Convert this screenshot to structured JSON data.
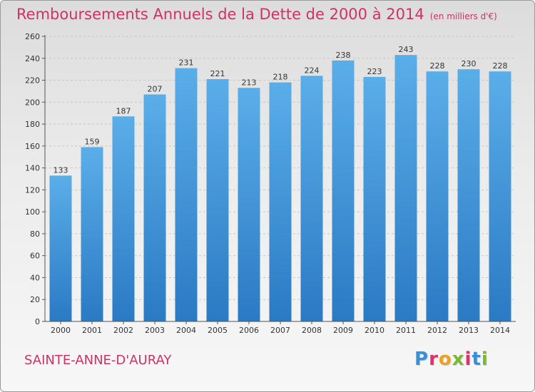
{
  "header": {
    "title": "Remboursements Annuels de la Dette de 2000 à 2014",
    "unit": "(en milliers d'€)"
  },
  "footer": {
    "commune": "SAINTE-ANNE-D'AURAY",
    "logo_letters": [
      "P",
      "r",
      "o",
      "x",
      "i",
      "t",
      "i"
    ],
    "logo_colors": [
      "#3a8fd6",
      "#e2306c",
      "#f0a020",
      "#7cb830",
      "#e2306c",
      "#3a8fd6",
      "#7cb830"
    ]
  },
  "colors": {
    "bar_light": "#5aaee8",
    "bar_dark": "#2a7ac4",
    "accent": "#cc3366"
  },
  "chart_data": {
    "type": "bar",
    "title": "Remboursements Annuels de la Dette de 2000 à 2014",
    "unit": "(en milliers d'€)",
    "categories": [
      "2000",
      "2001",
      "2002",
      "2003",
      "2004",
      "2005",
      "2006",
      "2007",
      "2008",
      "2009",
      "2010",
      "2011",
      "2012",
      "2013",
      "2014"
    ],
    "values": [
      133,
      159,
      187,
      207,
      231,
      221,
      213,
      218,
      224,
      238,
      223,
      243,
      228,
      230,
      228
    ],
    "ylim": [
      0,
      260
    ],
    "yticks": [
      0,
      20,
      40,
      60,
      80,
      100,
      120,
      140,
      160,
      180,
      200,
      220,
      240,
      260
    ],
    "grid": true
  }
}
